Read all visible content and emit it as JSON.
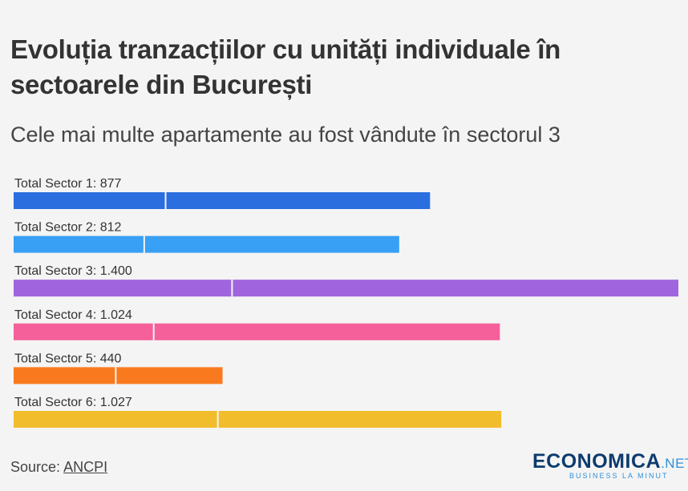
{
  "title": "Evoluția tranzacțiilor cu unități individuale în sectoarele din București",
  "subtitle": "Cele mai multe apartamente au fost vândute în sectorul 3",
  "chart_data": {
    "type": "bar",
    "orientation": "horizontal",
    "categories": [
      "Total Sector 1: 877",
      "Total Sector 2: 812",
      "Total Sector 3: 1.400",
      "Total Sector 4: 1.024",
      "Total Sector 5: 440",
      "Total Sector 6: 1.027"
    ],
    "values": [
      877,
      812,
      1400,
      1024,
      440,
      1027
    ],
    "segment_split": [
      320,
      275,
      460,
      295,
      215,
      430
    ],
    "colors": [
      "#2a6ee0",
      "#38a0f5",
      "#a064de",
      "#f5609b",
      "#f97a1e",
      "#f2bd2c"
    ],
    "xlim": [
      0,
      1400
    ],
    "grid": false,
    "title": "Evoluția tranzacțiilor cu unități individuale în sectoarele din București",
    "subtitle": "Cele mai multe apartamente au fost vândute în sectorul 3"
  },
  "source": {
    "label": "Source:",
    "link": "ANCPI"
  },
  "logo": {
    "main": "ECONOMICA",
    "suffix": ".NET",
    "tagline": "BUSINESS LA MINUT"
  }
}
